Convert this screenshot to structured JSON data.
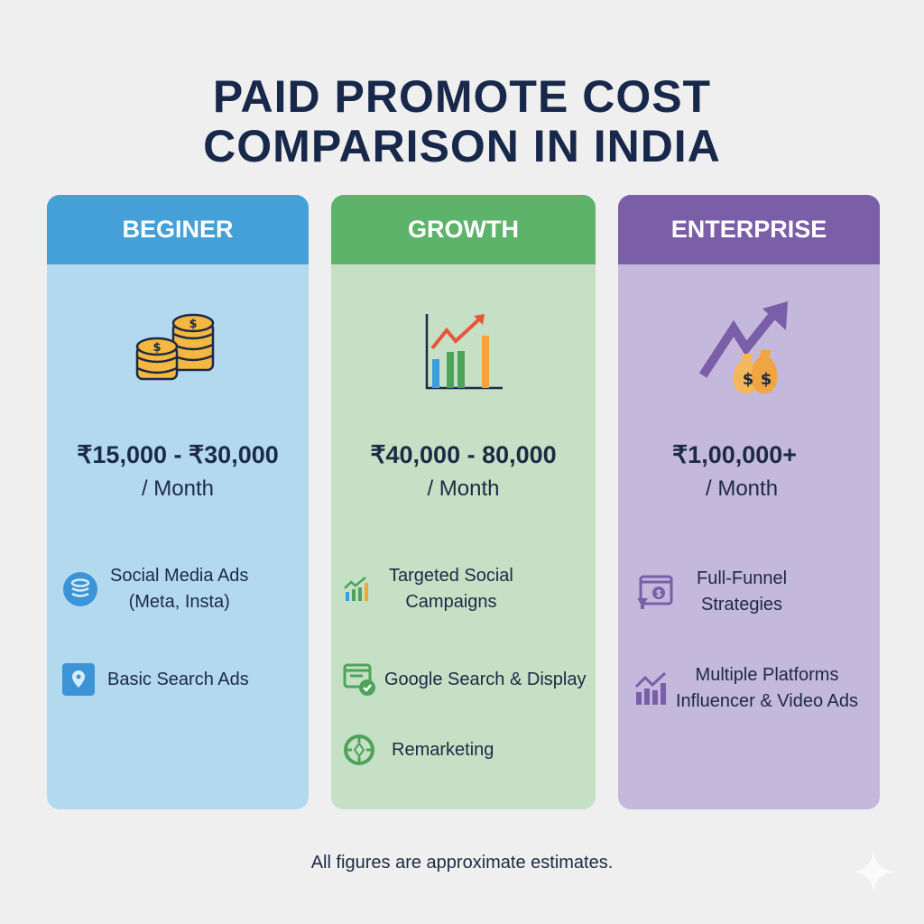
{
  "title_line1": "PAID PROMOTE COST",
  "title_line2": "COMPARISON IN INDIA",
  "colors": {
    "background": "#efeff0",
    "title": "#17284a",
    "beginner_header": "#45a0d8",
    "beginner_body": "#b3d9ef",
    "growth_header": "#5db36a",
    "growth_body": "#c5e0c5",
    "enterprise_header": "#7a5ea8",
    "enterprise_body": "#c4b8dc"
  },
  "plans": [
    {
      "name": "BEGINER",
      "icon": "coin-stack-icon",
      "price": "₹15,000 - ₹30,000",
      "period": "/ Month",
      "features": [
        {
          "icon": "layers-icon",
          "line1": "Social Media Ads",
          "line2": "(Meta, Insta)"
        },
        {
          "icon": "location-pin-icon",
          "line1": "Basic Search Ads"
        }
      ]
    },
    {
      "name": "GROWTH",
      "icon": "bar-chart-growth-icon",
      "price": "₹40,000 - 80,000",
      "period": "/ Month",
      "features": [
        {
          "icon": "chart-trend-icon",
          "line1": "Targeted Social",
          "line2": "Campaigns"
        },
        {
          "icon": "browser-check-icon",
          "line1": "Google Search & Display"
        },
        {
          "icon": "target-icon",
          "line1": "Remarketing"
        }
      ]
    },
    {
      "name": "ENTERPRISE",
      "icon": "money-bags-arrow-icon",
      "price": "₹1,00,000+",
      "period": "/ Month",
      "features": [
        {
          "icon": "funnel-dollar-icon",
          "line1": "Full-Funnel",
          "line2": "Strategies"
        },
        {
          "icon": "chart-trend-icon",
          "line1": "Multiple Platforms",
          "line2": "Influencer & Video Ads"
        }
      ]
    }
  ],
  "footer": "All figures are approximate estimates."
}
